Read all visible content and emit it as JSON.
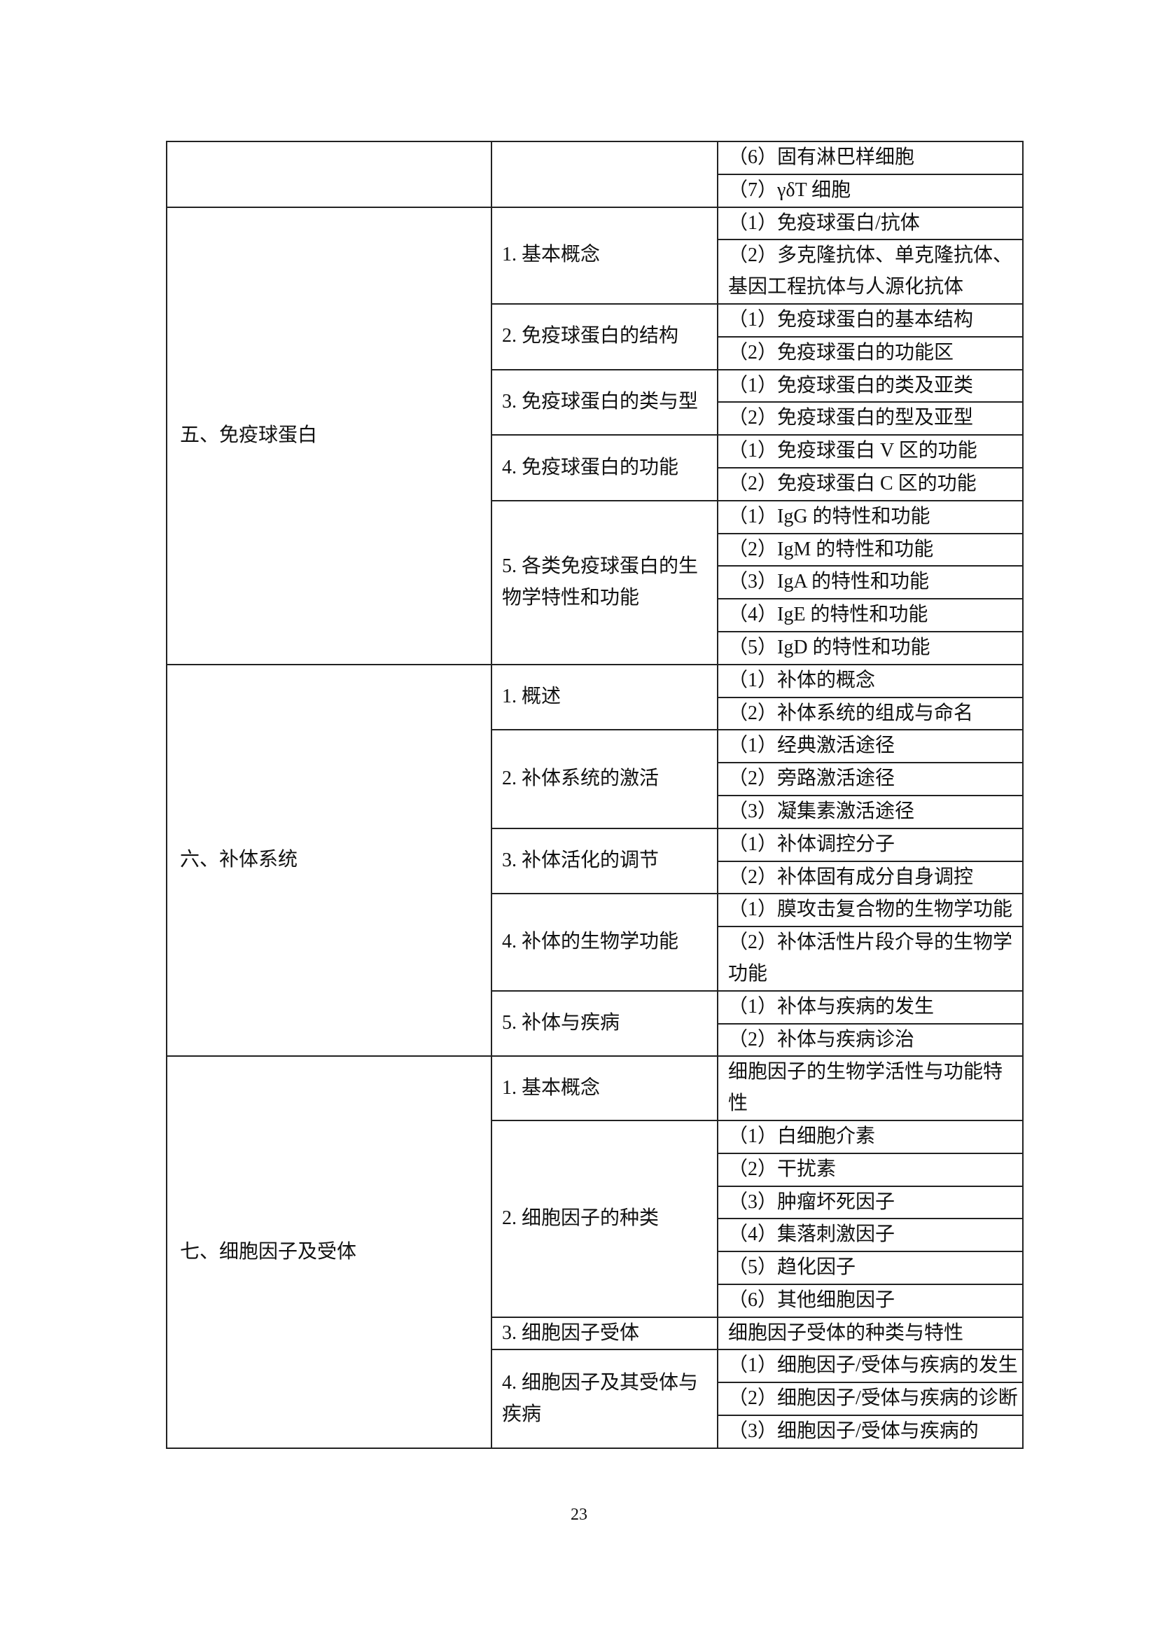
{
  "sections": [
    {
      "title": "",
      "subs": [
        {
          "title": "",
          "items": [
            "（6）固有淋巴样细胞",
            "（7）γδT 细胞"
          ]
        }
      ]
    },
    {
      "title": "五、免疫球蛋白",
      "subs": [
        {
          "title": "1. 基本概念",
          "items": [
            "（1）免疫球蛋白/抗体",
            "（2）多克隆抗体、单克隆抗体、基因工程抗体与人源化抗体"
          ]
        },
        {
          "title": "2. 免疫球蛋白的结构",
          "items": [
            "（1）免疫球蛋白的基本结构",
            "（2）免疫球蛋白的功能区"
          ]
        },
        {
          "title": "3. 免疫球蛋白的类与型",
          "items": [
            "（1）免疫球蛋白的类及亚类",
            "（2）免疫球蛋白的型及亚型"
          ]
        },
        {
          "title": "4. 免疫球蛋白的功能",
          "items": [
            "（1）免疫球蛋白 V 区的功能",
            "（2）免疫球蛋白 C 区的功能"
          ]
        },
        {
          "title": "5. 各类免疫球蛋白的生物学特性和功能",
          "items": [
            "（1）IgG 的特性和功能",
            "（2）IgM 的特性和功能",
            "（3）IgA 的特性和功能",
            "（4）IgE 的特性和功能",
            "（5）IgD 的特性和功能"
          ]
        }
      ]
    },
    {
      "title": "六、补体系统",
      "subs": [
        {
          "title": "1. 概述",
          "items": [
            "（1）补体的概念",
            "（2）补体系统的组成与命名"
          ]
        },
        {
          "title": "2. 补体系统的激活",
          "items": [
            "（1）经典激活途径",
            "（2）旁路激活途径",
            "（3）凝集素激活途径"
          ]
        },
        {
          "title": "3. 补体活化的调节",
          "items": [
            "（1）补体调控分子",
            "（2）补体固有成分自身调控"
          ]
        },
        {
          "title": "4. 补体的生物学功能",
          "items": [
            "（1）膜攻击复合物的生物学功能",
            "（2）补体活性片段介导的生物学功能"
          ]
        },
        {
          "title": "5. 补体与疾病",
          "items": [
            "（1）补体与疾病的发生",
            "（2）补体与疾病诊治"
          ]
        }
      ]
    },
    {
      "title": "七、细胞因子及受体",
      "subs": [
        {
          "title": "1. 基本概念",
          "items": [
            "细胞因子的生物学活性与功能特性"
          ]
        },
        {
          "title": "2. 细胞因子的种类",
          "items": [
            "（1）白细胞介素",
            "（2）干扰素",
            "（3）肿瘤坏死因子",
            "（4）集落刺激因子",
            "（5）趋化因子",
            "（6）其他细胞因子"
          ]
        },
        {
          "title": "3. 细胞因子受体",
          "items": [
            "细胞因子受体的种类与特性"
          ]
        },
        {
          "title": "4. 细胞因子及其受体与疾病",
          "items": [
            "（1）细胞因子/受体与疾病的发生",
            "（2）细胞因子/受体与疾病的诊断",
            "（3）细胞因子/受体与疾病的"
          ]
        }
      ]
    }
  ],
  "page_number": "23"
}
